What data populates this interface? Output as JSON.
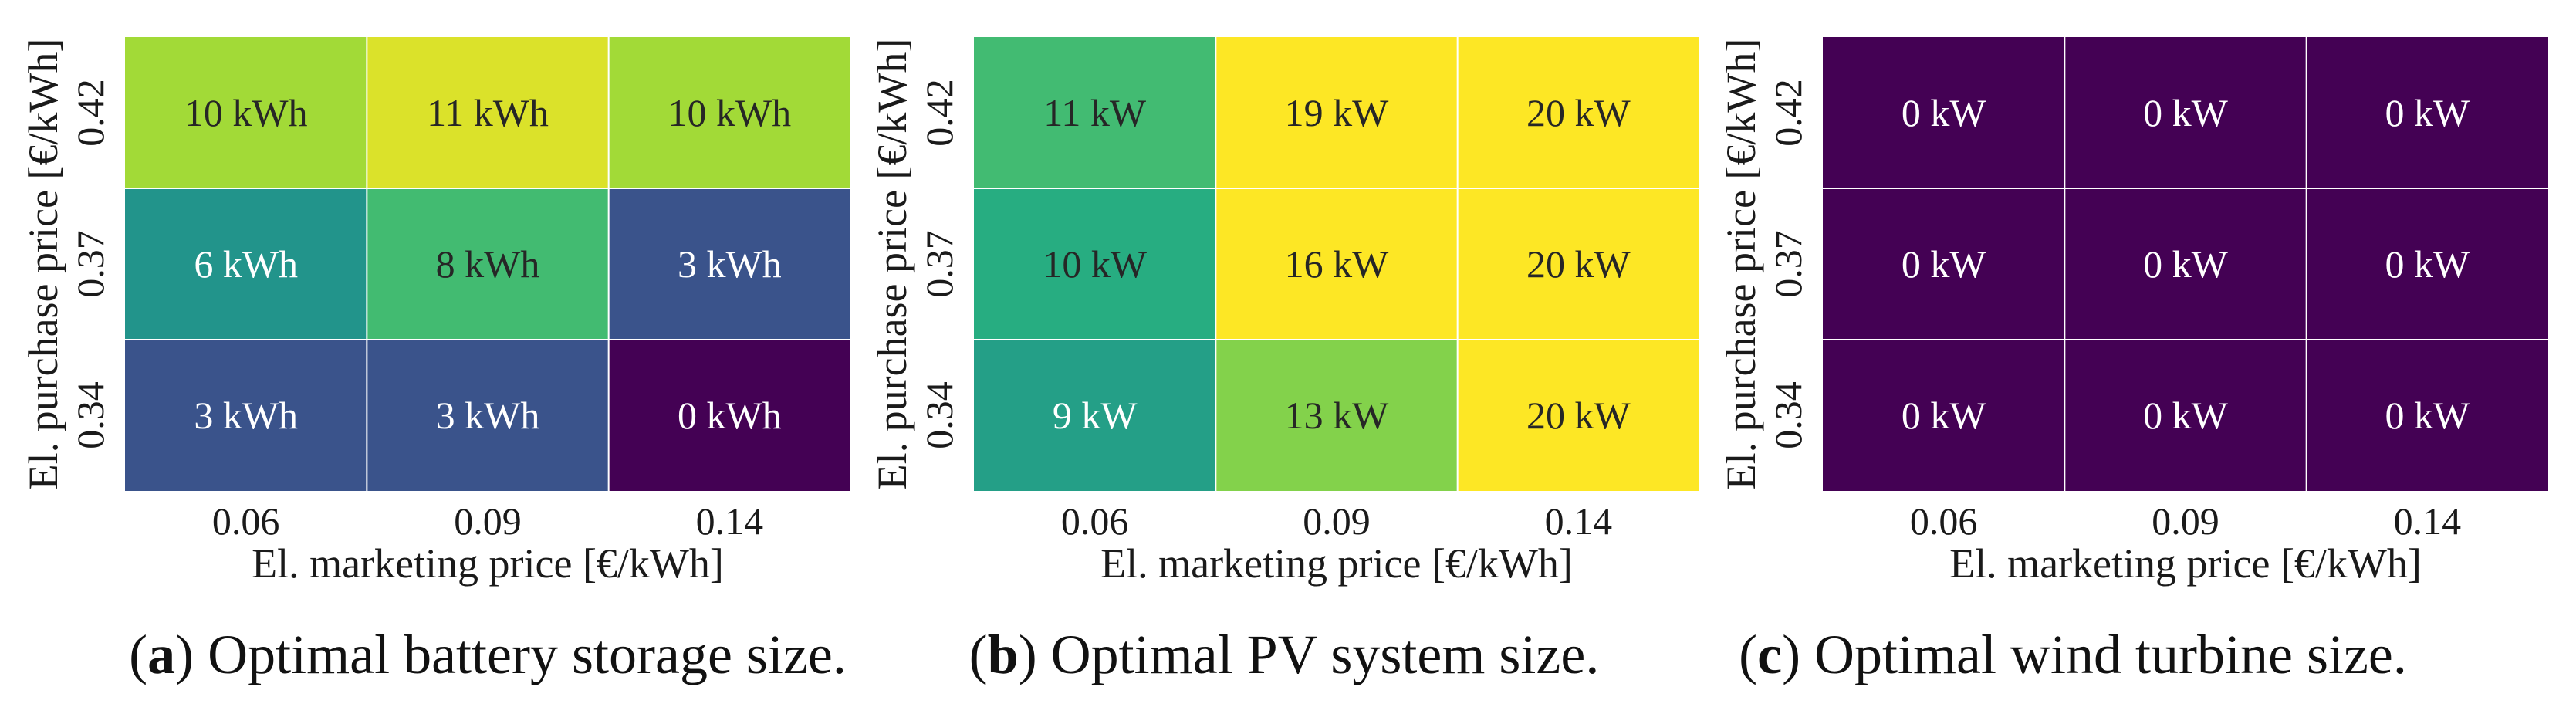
{
  "chart_data": [
    {
      "type": "heatmap",
      "caption_letter": "a",
      "caption_text": "Optimal battery storage size.",
      "xlabel": "El. marketing price [€/kWh]",
      "ylabel": "El. purchase price [€/kWh]",
      "x_categories": [
        "0.06",
        "0.09",
        "0.14"
      ],
      "y_categories": [
        "0.42",
        "0.37",
        "0.34"
      ],
      "unit": "kWh",
      "values": [
        [
          10,
          11,
          10
        ],
        [
          6,
          8,
          3
        ],
        [
          3,
          3,
          0
        ]
      ],
      "cell_labels": [
        [
          "10 kWh",
          "11 kWh",
          "10 kWh"
        ],
        [
          "6 kWh",
          "8 kWh",
          "3 kWh"
        ],
        [
          "3 kWh",
          "3 kWh",
          "0 kWh"
        ]
      ],
      "vmin": 0,
      "vmax": 11.6
    },
    {
      "type": "heatmap",
      "caption_letter": "b",
      "caption_text": "Optimal PV system size.",
      "xlabel": "El. marketing price [€/kWh]",
      "ylabel": "El. purchase price [€/kWh]",
      "x_categories": [
        "0.06",
        "0.09",
        "0.14"
      ],
      "y_categories": [
        "0.42",
        "0.37",
        "0.34"
      ],
      "unit": "kW",
      "values": [
        [
          11,
          19,
          20
        ],
        [
          10,
          16,
          20
        ],
        [
          9,
          13,
          20
        ]
      ],
      "cell_labels": [
        [
          "11 kW",
          "19 kW",
          "20 kW"
        ],
        [
          "10 kW",
          "16 kW",
          "20 kW"
        ],
        [
          "9 kW",
          "13 kW",
          "20 kW"
        ]
      ],
      "vmin": 0,
      "vmax": 16
    },
    {
      "type": "heatmap",
      "caption_letter": "c",
      "caption_text": "Optimal wind turbine size.",
      "xlabel": "El. marketing price [€/kWh]",
      "ylabel": "El. purchase price [€/kWh]",
      "x_categories": [
        "0.06",
        "0.09",
        "0.14"
      ],
      "y_categories": [
        "0.42",
        "0.37",
        "0.34"
      ],
      "unit": "kW",
      "values": [
        [
          0,
          0,
          0
        ],
        [
          0,
          0,
          0
        ],
        [
          0,
          0,
          0
        ]
      ],
      "cell_labels": [
        [
          "0 kW",
          "0 kW",
          "0 kW"
        ],
        [
          "0 kW",
          "0 kW",
          "0 kW"
        ],
        [
          "0 kW",
          "0 kW",
          "0 kW"
        ]
      ],
      "vmin": 0,
      "vmax": 1
    }
  ]
}
